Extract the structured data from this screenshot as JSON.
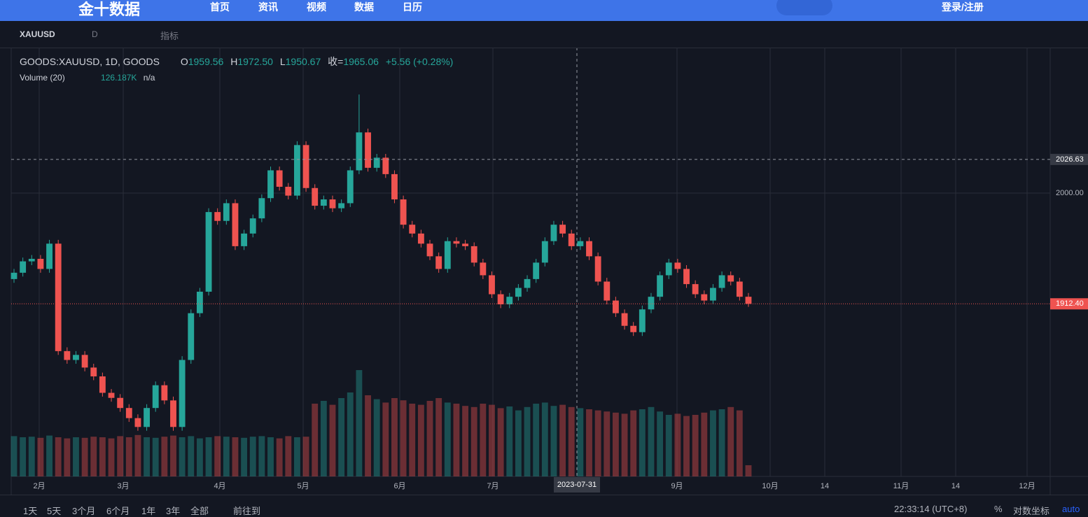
{
  "nav": {
    "logo": "金十数据",
    "links": [
      "首页",
      "资讯",
      "视频",
      "数据",
      "日历"
    ],
    "login": "登录/注册"
  },
  "toolbar": {
    "symbol": "XAUUSD",
    "interval": "D",
    "indicators": "指标"
  },
  "legend": {
    "title": "GOODS:XAUUSD, 1D, GOODS",
    "o_label": "O",
    "o": "1959.56",
    "h_label": "H",
    "h": "1972.50",
    "l_label": "L",
    "l": "1950.67",
    "c_label": "收=",
    "c": "1965.06",
    "change": "+5.56 (+0.28%)",
    "volume_title": "Volume (20)",
    "volume_value": "126.187K",
    "volume_ma": "n/a"
  },
  "bottom_bar": {
    "ranges": [
      "1天",
      "5天",
      "3个月",
      "6个月",
      "1年",
      "3年",
      "全部"
    ],
    "goto": "前往到",
    "time": "22:33:14 (UTC+8)",
    "percent": "%",
    "log": "对数坐标",
    "auto": "auto"
  },
  "chart_data": {
    "type": "candlestick",
    "up_color": "#26a69a",
    "down_color": "#ef5350",
    "grid": true,
    "yticks": [
      {
        "value": 2000,
        "label": "2000.00"
      }
    ],
    "crosshair": {
      "price": {
        "value": 2026.63,
        "label": "2026.63"
      },
      "date": "2023-07-31"
    },
    "last_price": {
      "value": 1912.4,
      "label": "1912.40"
    },
    "time_labels": [
      "2月",
      "3月",
      "4月",
      "5月",
      "6月",
      "7月",
      "9月",
      "10月",
      "14",
      "11月",
      "14",
      "12月"
    ],
    "candles": [
      [
        1932,
        1940,
        1929,
        1937
      ],
      [
        1937,
        1949,
        1934,
        1946
      ],
      [
        1946,
        1951,
        1943,
        1948
      ],
      [
        1948,
        1951,
        1937,
        1940
      ],
      [
        1940,
        1963,
        1937,
        1960
      ],
      [
        1960,
        1963,
        1872,
        1875
      ],
      [
        1875,
        1878,
        1865,
        1868
      ],
      [
        1868,
        1875,
        1865,
        1872
      ],
      [
        1872,
        1875,
        1859,
        1862
      ],
      [
        1862,
        1865,
        1852,
        1855
      ],
      [
        1855,
        1858,
        1839,
        1842
      ],
      [
        1842,
        1845,
        1835,
        1838
      ],
      [
        1838,
        1841,
        1827,
        1830
      ],
      [
        1830,
        1833,
        1819,
        1822
      ],
      [
        1822,
        1825,
        1812,
        1815
      ],
      [
        1815,
        1833,
        1812,
        1830
      ],
      [
        1830,
        1851,
        1827,
        1848
      ],
      [
        1848,
        1851,
        1833,
        1836
      ],
      [
        1836,
        1839,
        1812,
        1815
      ],
      [
        1815,
        1871,
        1812,
        1868
      ],
      [
        1868,
        1908,
        1865,
        1905
      ],
      [
        1905,
        1925,
        1902,
        1922
      ],
      [
        1922,
        1988,
        1919,
        1985
      ],
      [
        1985,
        1988,
        1975,
        1978
      ],
      [
        1978,
        1995,
        1975,
        1992
      ],
      [
        1992,
        1995,
        1955,
        1958
      ],
      [
        1958,
        1971,
        1955,
        1968
      ],
      [
        1968,
        1983,
        1965,
        1980
      ],
      [
        1980,
        1999,
        1977,
        1996
      ],
      [
        1996,
        2021,
        1993,
        2018
      ],
      [
        2018,
        2021,
        2002,
        2005
      ],
      [
        2005,
        2008,
        1995,
        1998
      ],
      [
        1998,
        2041,
        1995,
        2038
      ],
      [
        2038,
        2041,
        2001,
        2004
      ],
      [
        2004,
        2007,
        1987,
        1990
      ],
      [
        1990,
        1998,
        1987,
        1995
      ],
      [
        1995,
        1998,
        1985,
        1988
      ],
      [
        1988,
        1995,
        1985,
        1992
      ],
      [
        1992,
        2021,
        1989,
        2018
      ],
      [
        2018,
        2078,
        2015,
        2048
      ],
      [
        2048,
        2051,
        2017,
        2020
      ],
      [
        2020,
        2031,
        2017,
        2028
      ],
      [
        2028,
        2031,
        2012,
        2015
      ],
      [
        2015,
        2018,
        1992,
        1995
      ],
      [
        1995,
        1998,
        1972,
        1975
      ],
      [
        1975,
        1978,
        1965,
        1968
      ],
      [
        1968,
        1971,
        1957,
        1960
      ],
      [
        1960,
        1963,
        1947,
        1950
      ],
      [
        1950,
        1953,
        1937,
        1940
      ],
      [
        1940,
        1965,
        1937,
        1962
      ],
      [
        1962,
        1965,
        1957,
        1960
      ],
      [
        1960,
        1963,
        1955,
        1958
      ],
      [
        1958,
        1961,
        1942,
        1945
      ],
      [
        1945,
        1948,
        1932,
        1935
      ],
      [
        1935,
        1938,
        1917,
        1920
      ],
      [
        1920,
        1923,
        1909,
        1912
      ],
      [
        1912,
        1921,
        1909,
        1918
      ],
      [
        1918,
        1928,
        1915,
        1925
      ],
      [
        1925,
        1935,
        1922,
        1932
      ],
      [
        1932,
        1948,
        1929,
        1945
      ],
      [
        1945,
        1965,
        1942,
        1962
      ],
      [
        1962,
        1978,
        1959,
        1975
      ],
      [
        1975,
        1978,
        1965,
        1968
      ],
      [
        1968,
        1971,
        1955,
        1958
      ],
      [
        1958,
        1965,
        1955,
        1962
      ],
      [
        1962,
        1965,
        1947,
        1950
      ],
      [
        1950,
        1953,
        1927,
        1930
      ],
      [
        1930,
        1933,
        1912,
        1915
      ],
      [
        1915,
        1918,
        1902,
        1905
      ],
      [
        1905,
        1908,
        1892,
        1895
      ],
      [
        1895,
        1898,
        1887,
        1890
      ],
      [
        1890,
        1911,
        1887,
        1908
      ],
      [
        1908,
        1921,
        1905,
        1918
      ],
      [
        1918,
        1938,
        1915,
        1935
      ],
      [
        1935,
        1948,
        1932,
        1945
      ],
      [
        1945,
        1948,
        1937,
        1940
      ],
      [
        1940,
        1943,
        1925,
        1928
      ],
      [
        1928,
        1931,
        1917,
        1920
      ],
      [
        1920,
        1923,
        1912,
        1915
      ],
      [
        1915,
        1928,
        1912,
        1925
      ],
      [
        1925,
        1938,
        1922,
        1935
      ],
      [
        1935,
        1938,
        1927,
        1930
      ],
      [
        1930,
        1933,
        1915,
        1918
      ],
      [
        1918,
        1921,
        1910,
        1912.4
      ]
    ],
    "volumes": [
      72,
      70,
      71,
      69,
      73,
      70,
      68,
      70,
      69,
      71,
      70,
      68,
      72,
      70,
      74,
      70,
      69,
      71,
      73,
      70,
      72,
      68,
      70,
      72,
      71,
      70,
      69,
      71,
      72,
      70,
      68,
      72,
      70,
      71,
      130,
      135,
      128,
      140,
      150,
      190,
      145,
      138,
      132,
      140,
      136,
      130,
      128,
      135,
      140,
      132,
      130,
      126,
      124,
      130,
      128,
      122,
      125,
      118,
      124,
      130,
      132,
      126,
      128,
      124,
      122,
      120,
      118,
      116,
      114,
      112,
      118,
      120,
      124,
      116,
      110,
      112,
      108,
      110,
      114,
      118,
      120,
      124,
      118,
      20
    ]
  }
}
